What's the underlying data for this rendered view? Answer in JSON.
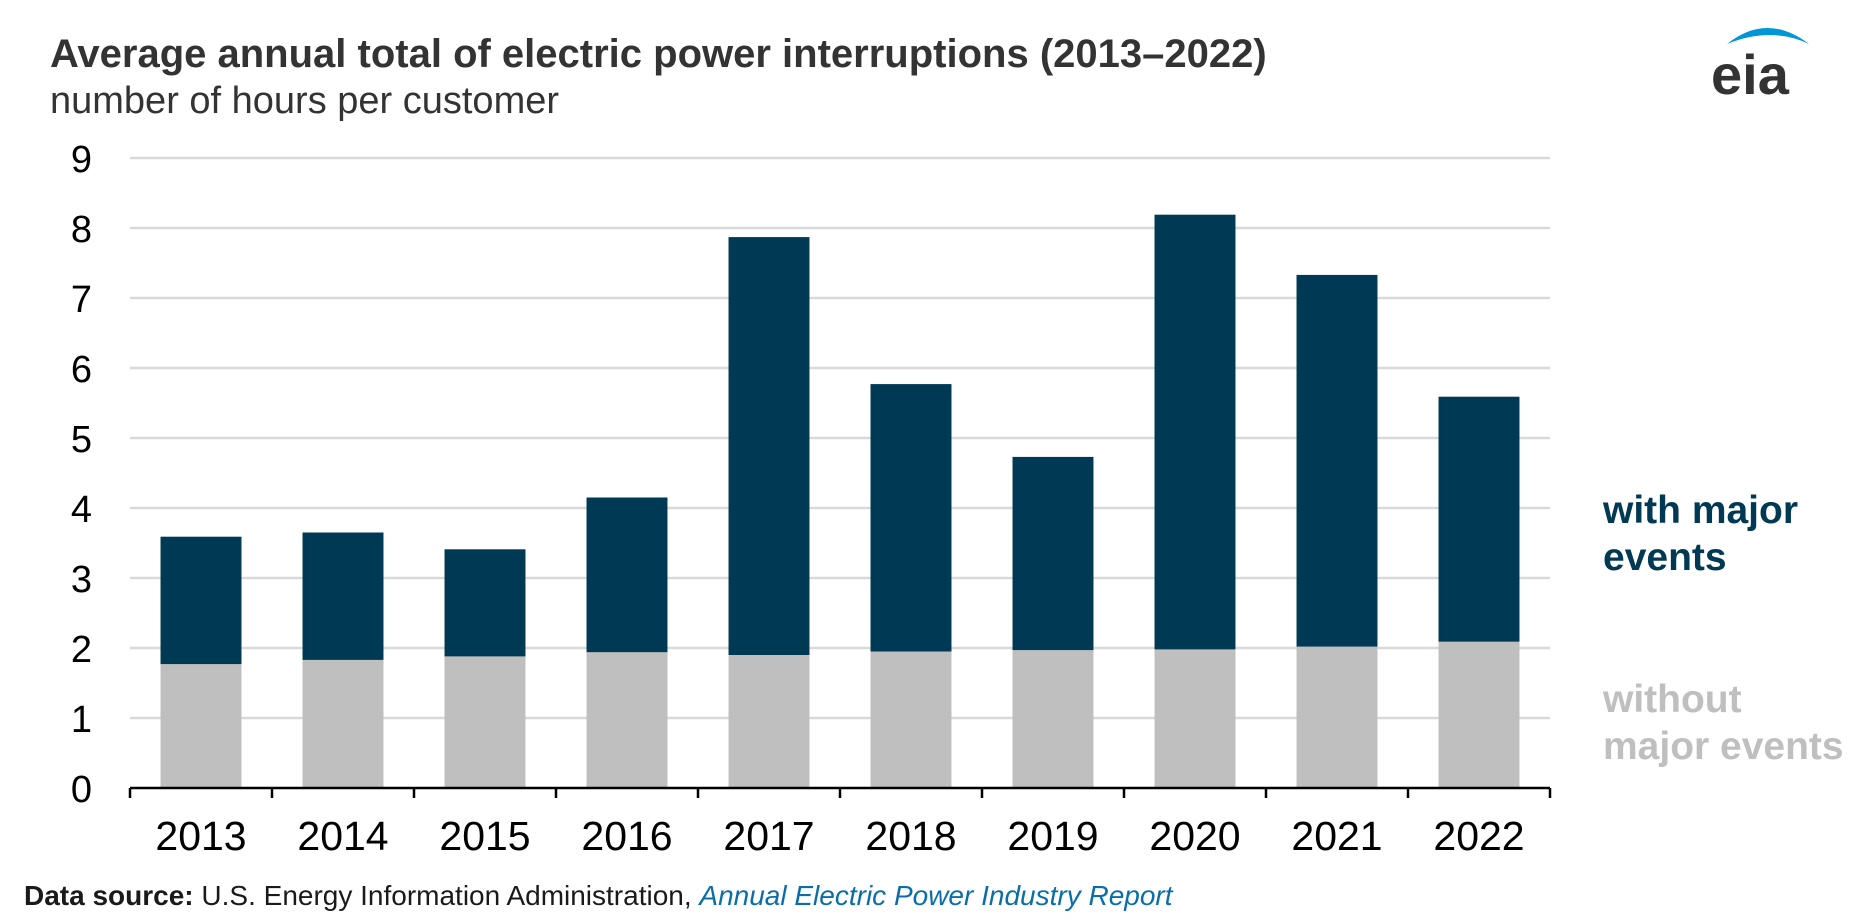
{
  "header": {
    "title": "Average annual total of electric power interruptions (2013–2022)",
    "subtitle": "number of hours per customer"
  },
  "logo": {
    "text": "eia",
    "icon": "eia-logo-icon",
    "accent_color": "#0096d7",
    "text_color": "#333333"
  },
  "legend": {
    "major": {
      "line1": "with major",
      "line2": "events"
    },
    "without": {
      "line1": "without",
      "line2": "major events"
    }
  },
  "footer": {
    "label": "Data source:",
    "text": "U.S. Energy Information Administration, ",
    "link": "Annual Electric Power Industry Report"
  },
  "colors": {
    "with_major_events": "#003953",
    "without_major_events": "#bfbfbf",
    "gridline": "#d9d9d9",
    "axis": "#000000",
    "text": "#333333"
  },
  "chart_data": {
    "type": "bar",
    "stacked": true,
    "title": "Average annual total of electric power interruptions (2013–2022)",
    "subtitle": "number of hours per customer",
    "xlabel": "",
    "ylabel": "number of hours per customer",
    "categories": [
      "2013",
      "2014",
      "2015",
      "2016",
      "2017",
      "2018",
      "2019",
      "2020",
      "2021",
      "2022"
    ],
    "yticks": [
      "0",
      "1",
      "2",
      "3",
      "4",
      "5",
      "6",
      "7",
      "8",
      "9"
    ],
    "ylim": [
      0,
      9
    ],
    "grid": true,
    "legend_position": "right",
    "series": [
      {
        "name": "without major events",
        "values": [
          1.77,
          1.83,
          1.88,
          1.94,
          1.9,
          1.95,
          1.97,
          1.98,
          2.02,
          2.09
        ]
      },
      {
        "name": "with major events",
        "values": [
          1.82,
          1.82,
          1.53,
          2.21,
          5.97,
          3.82,
          2.76,
          6.21,
          5.31,
          3.5
        ]
      }
    ]
  }
}
